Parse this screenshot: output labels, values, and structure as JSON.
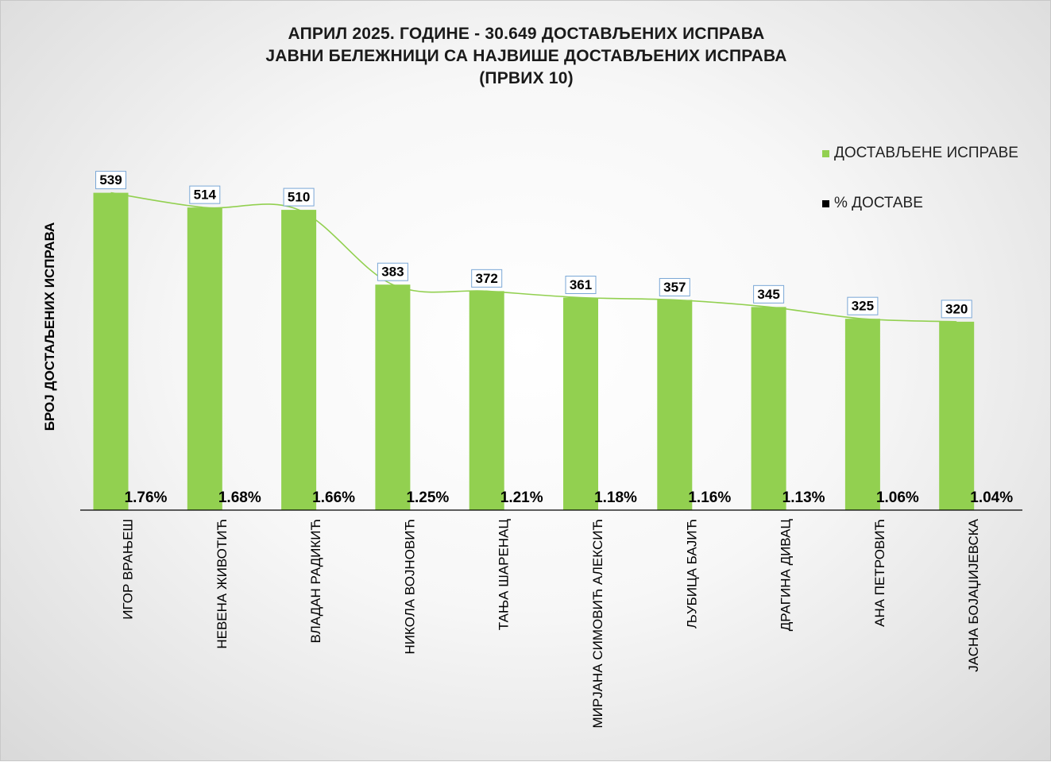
{
  "chart_data": {
    "type": "bar",
    "title": [
      "АПРИЛ 2025. ГОДИНЕ - 30.649  ДОСТАВЉЕНИХ  ИСПРАВА",
      "ЈАВНИ БЕЛЕЖНИЦИ СА НАЈВИШЕ ДОСТАВЉЕНИХ  ИСПРАВА",
      "(ПРВИХ 10)"
    ],
    "ylabel": "БРОЈ ДОСТАЉЕНИХ ИСПРАВА",
    "xlabel": "",
    "categories": [
      "ИГОР ВРАЊЕШ",
      "НЕВЕНА ЖИВОТИЋ",
      "ВЛАДАН РАДИКИЋ",
      "НИКОЛА ВОЈНОВИЋ",
      "ТАЊА ШАРЕНАЦ",
      "МИРЈАНА СИМОВИЋ АЛЕКСИЋ",
      "ЉУБИЦА БАЈИЋ",
      "ДРАГИНА ДИВАЦ",
      "АНА ПЕТРОВИЋ",
      "ЈАСНА БОЈАЏИЈЕВСКА"
    ],
    "series": [
      {
        "name": "ДОСТАВЉЕНЕ  ИСПРАВЕ",
        "values": [
          539,
          514,
          510,
          383,
          372,
          361,
          357,
          345,
          325,
          320
        ],
        "color": "#92d050"
      },
      {
        "name": "% ДОСТАВЕ",
        "values": [
          1.76,
          1.68,
          1.66,
          1.25,
          1.21,
          1.18,
          1.16,
          1.13,
          1.06,
          1.04
        ],
        "labels": [
          "1.76%",
          "1.68%",
          "1.66%",
          "1.25%",
          "1.21%",
          "1.18%",
          "1.16%",
          "1.13%",
          "1.06%",
          "1.04%"
        ],
        "color": "#000000"
      }
    ],
    "ylim": [
      0,
      560
    ],
    "trendline": true,
    "trendline_color": "#92d050",
    "legend_position": "top-right",
    "grid": false
  }
}
